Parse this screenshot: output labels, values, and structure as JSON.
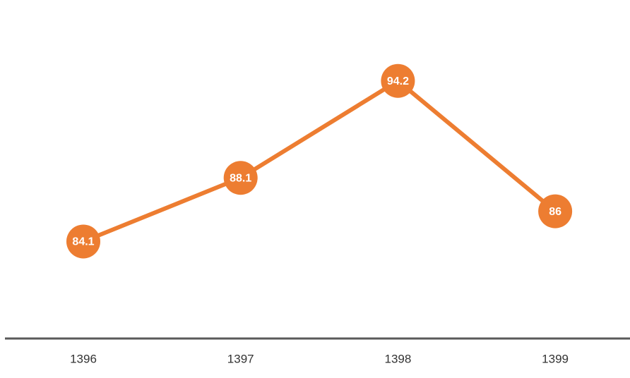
{
  "chart_data": {
    "type": "line",
    "categories": [
      "1396",
      "1397",
      "1398",
      "1399"
    ],
    "series": [
      {
        "color": "#ed7d31",
        "values": [
          84.1,
          88.1,
          94.2,
          86
        ]
      }
    ],
    "ylim": [
      78,
      98
    ]
  }
}
